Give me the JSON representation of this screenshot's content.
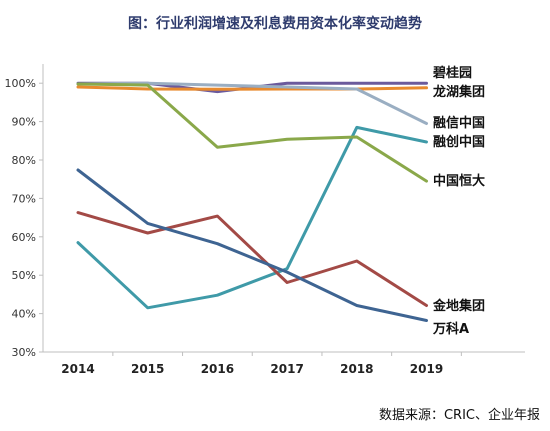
{
  "chart_data": {
    "type": "line",
    "title": "图：行业利润增速及利息费用资本化率变动趋势",
    "source": "数据来源：CRIC、企业年报",
    "x": [
      "2014",
      "2015",
      "2016",
      "2017",
      "2018",
      "2019"
    ],
    "ylim": [
      30,
      105
    ],
    "yticks": [
      "30%",
      "40%",
      "50%",
      "60%",
      "70%",
      "80%",
      "90%",
      "100%"
    ],
    "ytick_values": [
      30,
      40,
      50,
      60,
      70,
      80,
      90,
      100
    ],
    "grid": false,
    "series": [
      {
        "name": "碧桂园",
        "color": "#6b5a9c",
        "values": [
          100.0,
          100.0,
          97.8,
          100.0,
          100.0,
          100.0
        ]
      },
      {
        "name": "龙湖集团",
        "color": "#e88a2e",
        "values": [
          99.0,
          98.5,
          98.4,
          98.5,
          98.5,
          98.8
        ]
      },
      {
        "name": "融信中国",
        "color": "#9aaec2",
        "values": [
          99.8,
          100.0,
          99.5,
          99.0,
          98.5,
          89.5
        ]
      },
      {
        "name": "融创中国",
        "color": "#3f9aa8",
        "values": [
          58.5,
          41.5,
          44.8,
          51.7,
          88.5,
          84.7
        ]
      },
      {
        "name": "中国恒大",
        "color": "#8aa84a",
        "values": [
          99.8,
          99.5,
          83.3,
          85.4,
          86.0,
          74.5
        ]
      },
      {
        "name": "金地集团",
        "color": "#a34a46",
        "values": [
          66.3,
          61.0,
          65.4,
          48.1,
          53.7,
          42.1
        ]
      },
      {
        "name": "万科A",
        "color": "#3e6492",
        "values": [
          77.4,
          63.5,
          58.2,
          50.8,
          42.1,
          38.2
        ]
      }
    ]
  }
}
